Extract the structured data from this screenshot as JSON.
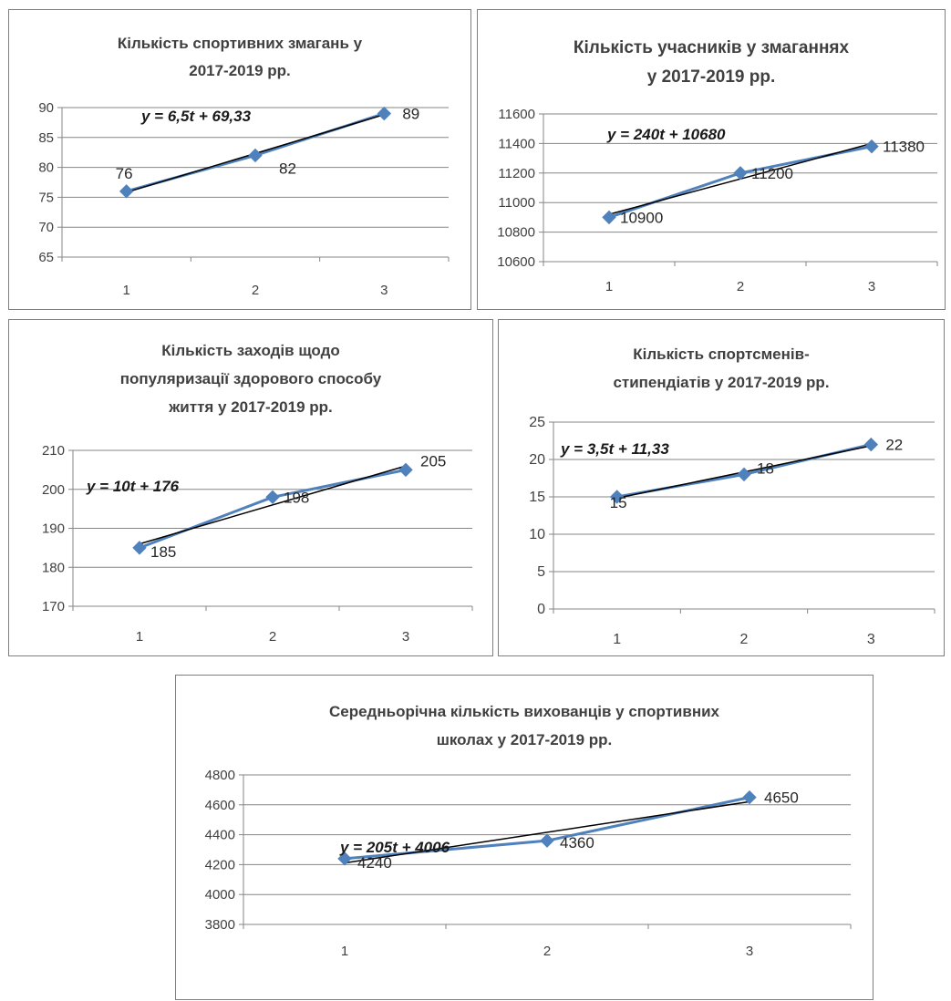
{
  "chart_data": [
    {
      "type": "line",
      "title": [
        "Кількість  спортивних змагань у",
        "2017-2019 рр."
      ],
      "categories": [
        "1",
        "2",
        "3"
      ],
      "values": [
        76,
        82,
        89
      ],
      "data_labels": [
        "76",
        "82",
        "89"
      ],
      "yticks": [
        "65",
        "70",
        "75",
        "80",
        "85",
        "90"
      ],
      "ylim": [
        65,
        90
      ],
      "trendline": {
        "equation": "y = 6,5t + 69,33",
        "slope": 6.5,
        "intercept": 69.33
      },
      "grid": true,
      "legend": "none",
      "colors": {
        "series": "#4f81bd",
        "trend": "#000000"
      }
    },
    {
      "type": "line",
      "title": [
        "Кількість учасників у змаганнях",
        "у 2017-2019  рр."
      ],
      "categories": [
        "1",
        "2",
        "3"
      ],
      "values": [
        10900,
        11200,
        11380
      ],
      "data_labels": [
        "10900",
        "11200",
        "11380"
      ],
      "yticks": [
        "10600",
        "10800",
        "11000",
        "11200",
        "11400",
        "11600"
      ],
      "ylim": [
        10600,
        11600
      ],
      "trendline": {
        "equation": "y = 240t + 10680",
        "slope": 240,
        "intercept": 10680
      },
      "grid": true,
      "legend": "none",
      "colors": {
        "series": "#4f81bd",
        "trend": "#000000"
      }
    },
    {
      "type": "line",
      "title": [
        "Кількість  заходів щодо",
        "популяризації  здорового способу",
        "життя у 2017-2019 рр."
      ],
      "categories": [
        "1",
        "2",
        "3"
      ],
      "values": [
        185,
        198,
        205
      ],
      "data_labels": [
        "185",
        "198",
        "205"
      ],
      "yticks": [
        "170",
        "180",
        "190",
        "200",
        "210"
      ],
      "ylim": [
        170,
        210
      ],
      "trendline": {
        "equation": "y = 10t + 176",
        "slope": 10,
        "intercept": 176
      },
      "grid": true,
      "legend": "none",
      "colors": {
        "series": "#4f81bd",
        "trend": "#000000"
      }
    },
    {
      "type": "line",
      "title": [
        "Кількість  спортсменів-",
        "стипендіатів  у 2017-2019 рр."
      ],
      "categories": [
        "1",
        "2",
        "3"
      ],
      "values": [
        15,
        18,
        22
      ],
      "data_labels": [
        "15",
        "18",
        "22"
      ],
      "yticks": [
        "0",
        "5",
        "10",
        "15",
        "20",
        "25"
      ],
      "ylim": [
        0,
        25
      ],
      "trendline": {
        "equation": "y = 3,5t + 11,33",
        "slope": 3.5,
        "intercept": 11.33
      },
      "grid": true,
      "legend": "none",
      "colors": {
        "series": "#4f81bd",
        "trend": "#000000"
      }
    },
    {
      "type": "line",
      "title": [
        "Середньорічна кількість  вихованців  у спортивних",
        "школах у 2017-2019 рр."
      ],
      "categories": [
        "1",
        "2",
        "3"
      ],
      "values": [
        4240,
        4360,
        4650
      ],
      "data_labels": [
        "4240",
        "4360",
        "4650"
      ],
      "yticks": [
        "3800",
        "4000",
        "4200",
        "4400",
        "4600",
        "4800"
      ],
      "ylim": [
        3800,
        4800
      ],
      "trendline": {
        "equation": "y = 205t + 4006",
        "slope": 205,
        "intercept": 4006
      },
      "grid": true,
      "legend": "none",
      "colors": {
        "series": "#4f81bd",
        "trend": "#000000"
      }
    }
  ]
}
